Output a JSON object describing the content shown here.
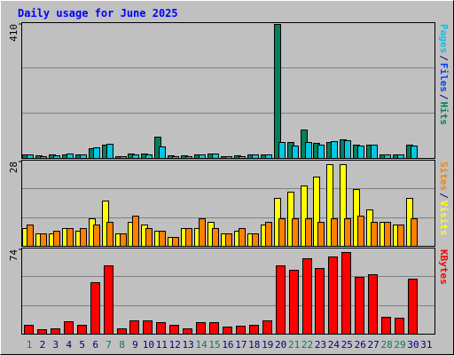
{
  "chart_data": {
    "type": "bar",
    "title": "Daily usage for June 2025",
    "categories": [
      1,
      2,
      3,
      4,
      5,
      6,
      7,
      8,
      9,
      10,
      11,
      12,
      13,
      14,
      15,
      16,
      17,
      18,
      19,
      20,
      21,
      22,
      23,
      24,
      25,
      26,
      27,
      28,
      29,
      30,
      31
    ],
    "day_color": "#00805c",
    "weekday_color": "#000080",
    "weekend": [
      0,
      6,
      7,
      13,
      14,
      20,
      21,
      27,
      28
    ],
    "separator": "/",
    "panels": [
      {
        "ylim": [
          0,
          410
        ],
        "yticks": [
          410
        ],
        "series": [
          {
            "name": "Hits",
            "color": "#00805c",
            "values": [
              12,
              8,
              10,
              12,
              10,
              30,
              42,
              6,
              14,
              14,
              65,
              8,
              8,
              12,
              14,
              6,
              8,
              10,
              12,
              410,
              50,
              88,
              45,
              50,
              58,
              40,
              42,
              12,
              12,
              40,
              0
            ]
          },
          {
            "name": "Files",
            "color": "#0040ff",
            "values": [
              10,
              6,
              8,
              14,
              10,
              32,
              44,
              6,
              10,
              10,
              35,
              6,
              6,
              12,
              14,
              6,
              6,
              10,
              12,
              48,
              38,
              50,
              40,
              52,
              55,
              38,
              40,
              12,
              12,
              38,
              0
            ]
          },
          {
            "name": "Pages",
            "color": "#00c8e8",
            "values": [
              10,
              6,
              8,
              14,
              10,
              32,
              44,
              6,
              10,
              10,
              35,
              6,
              6,
              12,
              14,
              6,
              6,
              10,
              12,
              48,
              38,
              50,
              40,
              52,
              55,
              38,
              40,
              12,
              12,
              38,
              0
            ]
          }
        ]
      },
      {
        "ylim": [
          0,
          28
        ],
        "yticks": [
          28
        ],
        "series": [
          {
            "name": "Visits",
            "color": "#ffff00",
            "values": [
              6,
              4,
              4,
              6,
              5,
              9,
              15,
              4,
              8,
              7,
              5,
              3,
              6,
              6,
              8,
              4,
              5,
              4,
              7,
              16,
              18,
              20,
              23,
              27,
              27,
              19,
              12,
              8,
              7,
              16,
              0
            ]
          },
          {
            "name": "Sites",
            "color": "#ff8000",
            "values": [
              7,
              4,
              5,
              6,
              6,
              7,
              8,
              4,
              10,
              6,
              5,
              3,
              6,
              9,
              6,
              4,
              6,
              4,
              8,
              9,
              9,
              9,
              8,
              9,
              9,
              10,
              8,
              8,
              7,
              9,
              0
            ]
          }
        ]
      },
      {
        "ylim": [
          0,
          74
        ],
        "yticks": [
          74
        ],
        "series": [
          {
            "name": "KBytes",
            "color": "#ff0000",
            "values": [
              8,
              4,
              5,
              11,
              8,
              45,
              60,
              5,
              12,
              12,
              10,
              8,
              5,
              10,
              10,
              6,
              7,
              8,
              12,
              60,
              56,
              66,
              58,
              68,
              72,
              50,
              52,
              15,
              14,
              48,
              0
            ]
          }
        ]
      }
    ]
  }
}
